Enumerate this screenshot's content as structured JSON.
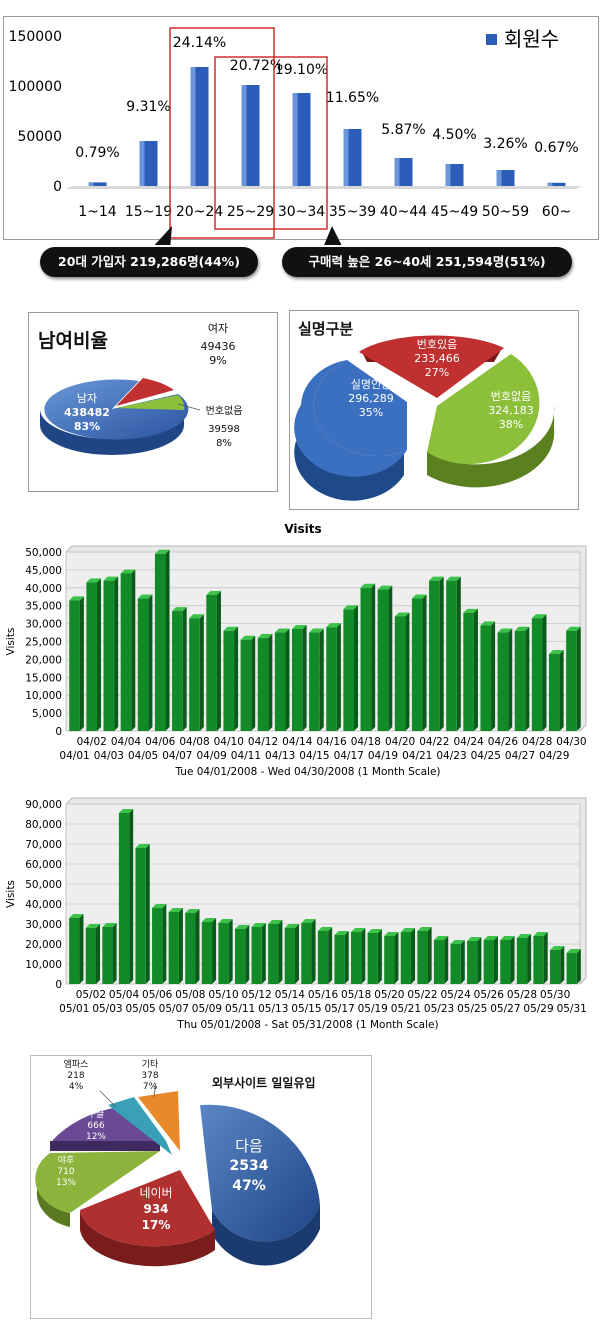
{
  "chart_data": [
    {
      "type": "bar",
      "categories": [
        "1~14",
        "15~19",
        "20~24",
        "25~29",
        "30~34",
        "35~39",
        "40~44",
        "45~49",
        "50~59",
        "60~"
      ],
      "series": [
        {
          "name": "회원수",
          "values": [
            3600,
            45000,
            119000,
            101000,
            93000,
            57000,
            28000,
            22000,
            16000,
            3200
          ]
        }
      ],
      "data_labels": [
        "0.79%",
        "9.31%",
        "24.14%",
        "20.72%",
        "19.10%",
        "11.65%",
        "5.87%",
        "4.50%",
        "3.26%",
        "0.67%"
      ],
      "y_ticks": [
        "150000",
        "100000",
        "50000",
        "0"
      ],
      "ylim": [
        0,
        150000
      ],
      "legend_position": "top-right",
      "legend_color": "#2a5cb8",
      "callouts": [
        "20대 가입자 219,286명(44%)",
        "구매력 높은 26~40세 251,594명(51%)"
      ]
    },
    {
      "type": "pie",
      "title": "남여비율",
      "slices": [
        {
          "name": "남자",
          "value": "438482",
          "percent": "83%",
          "color": "#3366bb"
        },
        {
          "name": "여자",
          "value": "49436",
          "percent": "9%",
          "color": "#c03030"
        },
        {
          "name": "번호없음",
          "value": "39598",
          "percent": "8%",
          "color": "#8cbf3a"
        }
      ]
    },
    {
      "type": "pie",
      "title": "실명구분",
      "slices": [
        {
          "name": "실명인증",
          "value": "296,289",
          "percent": "35%",
          "color": "#3a70bf"
        },
        {
          "name": "번호있음",
          "value": "233,466",
          "percent": "27%",
          "color": "#c03030"
        },
        {
          "name": "번호없음",
          "value": "324,183",
          "percent": "38%",
          "color": "#8cbf3a"
        }
      ]
    },
    {
      "type": "bar",
      "title": "Visits",
      "ylabel": "Visits",
      "xlabel": "Tue 04/01/2008 - Wed 04/30/2008 (1 Month Scale)",
      "ylim": [
        0,
        50000
      ],
      "y_ticks": [
        "50,000",
        "45,000",
        "40,000",
        "35,000",
        "30,000",
        "25,000",
        "20,000",
        "15,000",
        "10,000",
        "5,000",
        "0"
      ],
      "grid": true,
      "categories": [
        "04/01",
        "04/02",
        "04/03",
        "04/04",
        "04/05",
        "04/06",
        "04/07",
        "04/08",
        "04/09",
        "04/10",
        "04/11",
        "04/12",
        "04/13",
        "04/14",
        "04/15",
        "04/16",
        "04/17",
        "04/18",
        "04/19",
        "04/20",
        "04/21",
        "04/22",
        "04/23",
        "04/24",
        "04/25",
        "04/26",
        "04/27",
        "04/28",
        "04/29",
        "04/30"
      ],
      "values": [
        36500,
        41500,
        42000,
        44000,
        37000,
        49500,
        33500,
        31500,
        38000,
        28000,
        25500,
        26000,
        27500,
        28500,
        27500,
        29000,
        34000,
        40000,
        39500,
        32000,
        37000,
        42000,
        42000,
        33000,
        29500,
        27500,
        28000,
        31500,
        21500,
        28000
      ]
    },
    {
      "type": "bar",
      "ylabel": "Visits",
      "xlabel": "Thu 05/01/2008 - Sat 05/31/2008 (1 Month Scale)",
      "ylim": [
        0,
        90000
      ],
      "y_ticks": [
        "90,000",
        "80,000",
        "70,000",
        "60,000",
        "50,000",
        "40,000",
        "30,000",
        "20,000",
        "10,000",
        "0"
      ],
      "grid": true,
      "categories": [
        "05/01",
        "05/02",
        "05/03",
        "05/04",
        "05/05",
        "05/06",
        "05/07",
        "05/08",
        "05/09",
        "05/10",
        "05/11",
        "05/12",
        "05/13",
        "05/14",
        "05/15",
        "05/16",
        "05/17",
        "05/18",
        "05/19",
        "05/20",
        "05/21",
        "05/22",
        "05/23",
        "05/24",
        "05/25",
        "05/26",
        "05/27",
        "05/28",
        "05/29",
        "05/30",
        "05/31"
      ],
      "values": [
        33000,
        28000,
        28500,
        85500,
        68000,
        38000,
        36000,
        35500,
        31000,
        30500,
        27500,
        28500,
        30000,
        28000,
        30500,
        26500,
        24500,
        26000,
        25500,
        24000,
        26000,
        26500,
        22000,
        20000,
        21500,
        22000,
        22000,
        23000,
        24000,
        17000,
        15500
      ]
    },
    {
      "type": "pie",
      "title": "외부사이트 일일유입",
      "slices": [
        {
          "name": "다음",
          "value": "2534",
          "percent": "47%",
          "color": "#2f5d9e"
        },
        {
          "name": "네이버",
          "value": "934",
          "percent": "17%",
          "color": "#b03030"
        },
        {
          "name": "야후",
          "value": "710",
          "percent": "13%",
          "color": "#8cb43c"
        },
        {
          "name": "구글",
          "value": "666",
          "percent": "12%",
          "color": "#6a4a94"
        },
        {
          "name": "엠파스",
          "value": "218",
          "percent": "4%",
          "color": "#3aa0b8"
        },
        {
          "name": "기타",
          "value": "378",
          "percent": "7%",
          "color": "#e88a2a"
        }
      ]
    }
  ]
}
